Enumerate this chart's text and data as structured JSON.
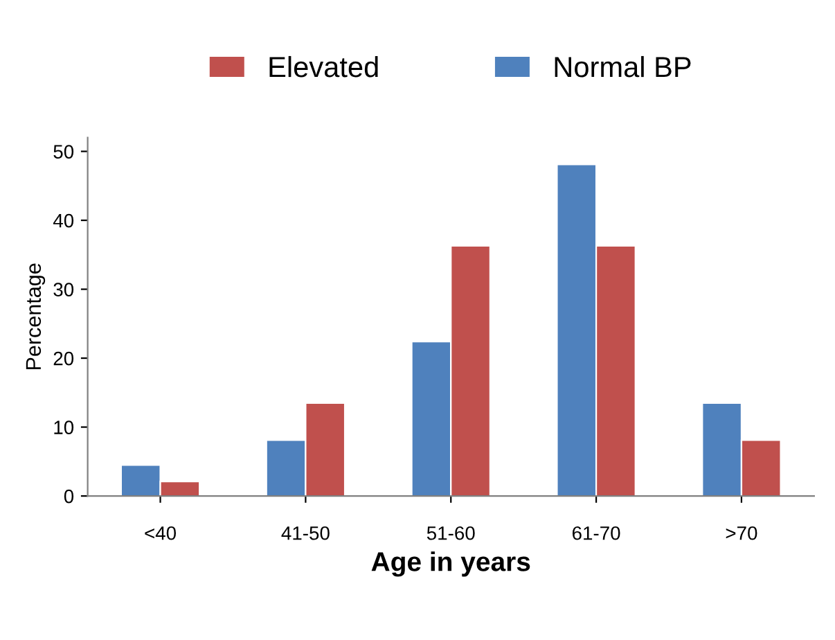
{
  "chart_data": {
    "type": "bar",
    "xlabel": "Age in years",
    "ylabel": "Percentage",
    "categories": [
      "<40",
      "41-50",
      "51-60",
      "61-70",
      ">70"
    ],
    "series": [
      {
        "name": "Normal BP",
        "color": "#4f81bd",
        "values": [
          4.5,
          8.1,
          22.4,
          48.1,
          13.5
        ]
      },
      {
        "name": "Elevated",
        "color": "#c0504d",
        "values": [
          2.1,
          13.5,
          36.3,
          36.3,
          8.1
        ]
      }
    ],
    "ylim": [
      0,
      52
    ],
    "yticks": [
      0,
      10,
      20,
      30,
      40,
      50
    ],
    "grid": false,
    "legend": "top"
  }
}
